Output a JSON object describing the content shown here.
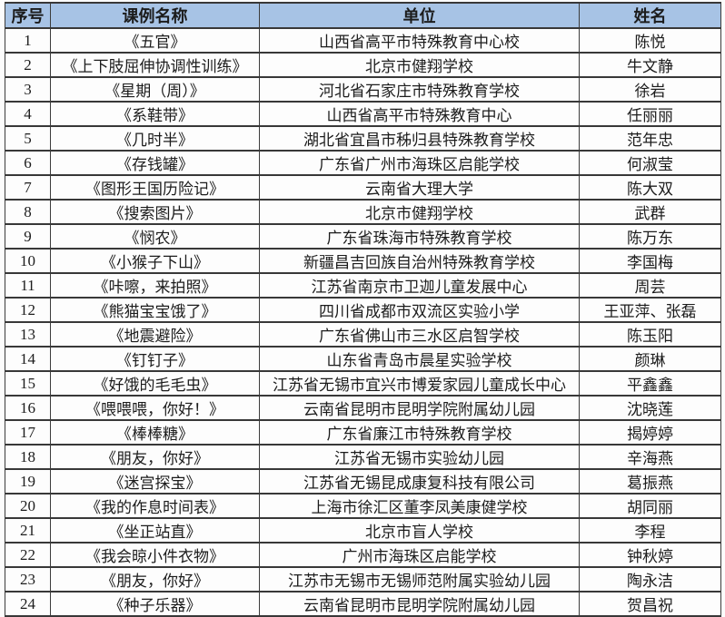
{
  "table": {
    "headers": [
      "序号",
      "课例名称",
      "单位",
      "姓名"
    ],
    "header_bg": "#a7c3e5",
    "border_color": "#3c3c3c",
    "rows": [
      [
        "1",
        "《五官》",
        "山西省高平市特殊教育中心校",
        "陈悦"
      ],
      [
        "2",
        "《上下肢屈伸协调性训练》",
        "北京市健翔学校",
        "牛文静"
      ],
      [
        "3",
        "《星期（周）》",
        "河北省石家庄市特殊教育学校",
        "徐岩"
      ],
      [
        "4",
        "《系鞋带》",
        "山西省高平市特殊教育中心",
        "任丽丽"
      ],
      [
        "5",
        "《几时半》",
        "湖北省宜昌市秭归县特殊教育学校",
        "范年忠"
      ],
      [
        "6",
        "《存钱罐》",
        "广东省广州市海珠区启能学校",
        "何淑莹"
      ],
      [
        "7",
        "《图形王国历险记》",
        "云南省大理大学",
        "陈大双"
      ],
      [
        "8",
        "《搜索图片》",
        "北京市健翔学校",
        "武群"
      ],
      [
        "9",
        "《悯农》",
        "广东省珠海市特殊教育学校",
        "陈万东"
      ],
      [
        "10",
        "《小猴子下山》",
        "新疆昌吉回族自治州特殊教育学校",
        "李国梅"
      ],
      [
        "11",
        "《咔嚓，来拍照》",
        "江苏省南京市卫迦儿童发展中心",
        "周芸"
      ],
      [
        "12",
        "《熊猫宝宝饿了》",
        "四川省成都市双流区实验小学",
        "王亚萍、张磊"
      ],
      [
        "13",
        "《地震避险》",
        "广东省佛山市三水区启智学校",
        "陈玉阳"
      ],
      [
        "14",
        "《钉钉子》",
        "山东省青岛市晨星实验学校",
        "颜琳"
      ],
      [
        "15",
        "《好饿的毛毛虫》",
        "江苏省无锡市宜兴市博爱家园儿童成长中心",
        "平鑫鑫"
      ],
      [
        "16",
        "《喂喂喂，你好！》",
        "云南省昆明市昆明学院附属幼儿园",
        "沈晓莲"
      ],
      [
        "17",
        "《棒棒糖》",
        "广东省廉江市特殊教育学校",
        "揭婷婷"
      ],
      [
        "18",
        "《朋友，你好》",
        "江苏省无锡市实验幼儿园",
        "辛海燕"
      ],
      [
        "19",
        "《迷宫探宝》",
        "江苏省无锡昆成康复科技有限公司",
        "葛振燕"
      ],
      [
        "20",
        "《我的作息时间表》",
        "上海市徐汇区董李凤美康健学校",
        "胡同丽"
      ],
      [
        "21",
        "《坐正站直》",
        "北京市盲人学校",
        "李程"
      ],
      [
        "22",
        "《我会晾小件衣物》",
        "广州市海珠区启能学校",
        "钟秋婷"
      ],
      [
        "23",
        "《朋友，你好》",
        "江苏市无锡市无锡师范附属实验幼儿园",
        "陶永洁"
      ],
      [
        "24",
        "《种子乐器》",
        "云南省昆明市昆明学院附属幼儿园",
        "贺昌祝"
      ]
    ]
  }
}
